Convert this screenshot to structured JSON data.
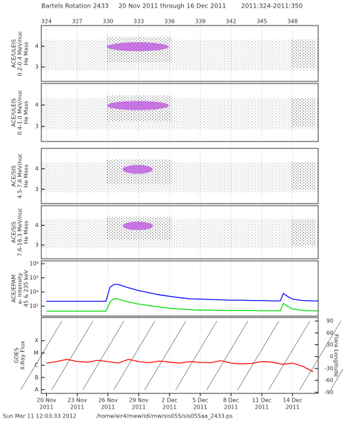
{
  "title": [
    "Bartels Rotation 2433",
    "20 Nov 2011 through 16 Dec 2011",
    "2011:324-2011:350"
  ],
  "footer": [
    "Sun Mar 11 12:03:33 2012",
    "/home/eir4/mew/idl/mw/sis055/sis055aa_2433.ps"
  ],
  "time_axis": {
    "xlim": [
      323.5,
      350.5
    ],
    "xticks": [
      324,
      327,
      330,
      333,
      336,
      339,
      342,
      345,
      348
    ],
    "date_labels": [
      "20 Nov",
      "23 Nov",
      "26 Nov",
      "29 Nov",
      "2 Dec",
      "5 Dec",
      "8 Dec",
      "11 Dec",
      "14 Dec"
    ],
    "year_labels": [
      "2011",
      "2011",
      "2011",
      "2011",
      "2011",
      "2011",
      "2011",
      "2011",
      "2011"
    ]
  },
  "chart_data": [
    {
      "type": "density",
      "ylabel": [
        "ACE/ULEIS",
        "0.2-0.4 MeV/nuc",
        "He Mass"
      ],
      "ylim": [
        2.3,
        5
      ],
      "yticks": [
        3,
        4
      ]
    },
    {
      "type": "density",
      "ylabel": [
        "ACE/ULEIS",
        "0.4-1.0 MeV/nuc",
        "He Mass"
      ],
      "ylim": [
        2.3,
        5
      ],
      "yticks": [
        3,
        4
      ]
    },
    {
      "type": "density",
      "ylabel": [
        "ACE/SIS",
        "4.5-7.6 MeV/nuc",
        "He Mass"
      ],
      "ylim": [
        2.3,
        5
      ],
      "yticks": [
        3,
        4
      ]
    },
    {
      "type": "density",
      "ylabel": [
        "ACE/SIS",
        "7.6-16.3 MeV/nuc",
        "He Mass"
      ],
      "ylim": [
        2.3,
        5
      ],
      "yticks": [
        3,
        4
      ]
    },
    {
      "type": "line",
      "log": true,
      "ylabel": [
        "ACE/EPAM",
        "e- Intensity",
        "45 & 235 keV"
      ],
      "ylim": [
        4,
        250000000
      ],
      "yticks": [
        {
          "value": 100,
          "label": "10²"
        },
        {
          "value": 10000,
          "label": "10⁴"
        },
        {
          "value": 1000000,
          "label": "10⁶"
        },
        {
          "value": 100000000,
          "label": "10⁸"
        }
      ],
      "x": [
        324,
        325,
        326,
        327,
        328,
        329,
        329.8,
        330.2,
        330.6,
        331,
        332,
        333,
        334,
        335,
        336,
        337,
        338,
        339,
        340,
        341,
        342,
        343,
        344,
        345,
        346,
        346.8,
        347.1,
        347.5,
        348,
        349,
        350,
        350.5
      ],
      "series": [
        {
          "color": "#0000ff",
          "values": [
            500,
            500,
            500,
            500,
            500,
            500,
            500,
            50000,
            120000,
            120000,
            40000,
            16000,
            8000,
            4000,
            2500,
            1600,
            1100,
            1000,
            900,
            800,
            700,
            700,
            630,
            630,
            560,
            560,
            6300,
            2500,
            1000,
            630,
            560,
            560
          ]
        },
        {
          "color": "#00dd00",
          "values": [
            20,
            20,
            20,
            20,
            20,
            20,
            20,
            400,
            1200,
            1000,
            400,
            200,
            125,
            80,
            50,
            40,
            32,
            28,
            28,
            25,
            25,
            25,
            25,
            22,
            22,
            22,
            250,
            100,
            40,
            25,
            22,
            22
          ]
        }
      ]
    },
    {
      "type": "line",
      "log": true,
      "ylabel": [
        "GOES",
        "X-Ray Flux"
      ],
      "y2label": "Flare Longitude",
      "ylim": [
        5e-09,
        0.008
      ],
      "yticks": [
        {
          "value": 1e-08,
          "label": "A"
        },
        {
          "value": 1e-07,
          "label": "B"
        },
        {
          "value": 1e-06,
          "label": "C"
        },
        {
          "value": 1e-05,
          "label": "M"
        },
        {
          "value": 0.0001,
          "label": "X"
        }
      ],
      "y2lim": [
        -93,
        99
      ],
      "y2ticks": [
        90,
        60,
        30,
        0,
        -30,
        -60,
        -90
      ],
      "x": [
        324,
        325,
        326,
        327,
        328,
        329,
        330,
        331,
        332,
        333,
        334,
        335,
        336,
        337,
        338,
        339,
        340,
        341,
        342,
        343,
        344,
        345,
        346,
        347,
        348,
        349,
        350
      ],
      "series": [
        {
          "color": "#ff0000",
          "values": [
            1.5e-06,
            2e-06,
            3e-06,
            2e-06,
            1.8e-06,
            2.5e-06,
            2e-06,
            1.5e-06,
            3e-06,
            2e-06,
            1.6e-06,
            2.2e-06,
            1.8e-06,
            1.5e-06,
            2e-06,
            1.7e-06,
            1.6e-06,
            2.4e-06,
            1.5e-06,
            1.3e-06,
            1.4e-06,
            2e-06,
            1.8e-06,
            1.2e-06,
            1.5e-06,
            8e-07,
            3e-07
          ]
        }
      ]
    }
  ]
}
